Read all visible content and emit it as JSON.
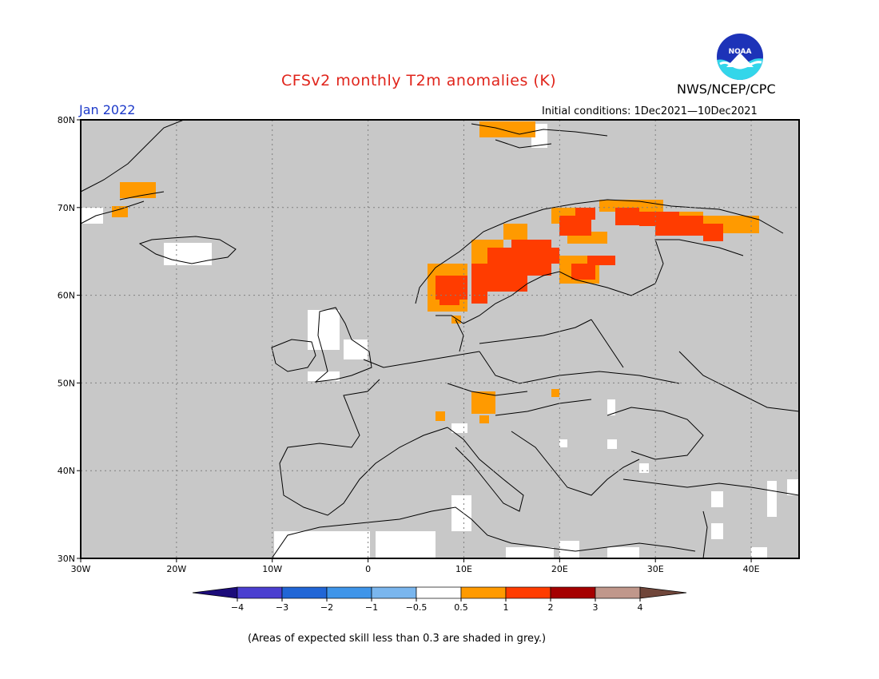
{
  "header": {
    "title": "CFSv2 monthly T2m anomalies (K)",
    "month": "Jan 2022",
    "agency": "NWS/NCEP/CPC",
    "initial_conditions": "Initial conditions: 1Dec2021—10Dec2021",
    "logo_text": "NOAA"
  },
  "map": {
    "lon_range": [
      -30,
      45
    ],
    "lat_range": [
      30,
      80
    ],
    "lat_labels": [
      "80N",
      "70N",
      "60N",
      "50N",
      "40N",
      "30N"
    ],
    "lon_labels": [
      "30W",
      "20W",
      "10W",
      "0",
      "10E",
      "20E",
      "30E",
      "40E"
    ],
    "background_color": "#c8c8c8"
  },
  "legend": {
    "tick_labels": [
      "−4",
      "−3",
      "−2",
      "−1",
      "−0.5",
      "0.5",
      "1",
      "2",
      "3",
      "4"
    ],
    "colors": [
      "#1c0c7a",
      "#4b3fd0",
      "#2166d6",
      "#3f95e9",
      "#7ab6ee",
      "#ffffff",
      "#ff9a00",
      "#ff3c00",
      "#a50000",
      "#c0978b",
      "#70463a"
    ]
  },
  "footnote": "(Areas of expected skill less than 0.3 are shaded in grey.)"
}
